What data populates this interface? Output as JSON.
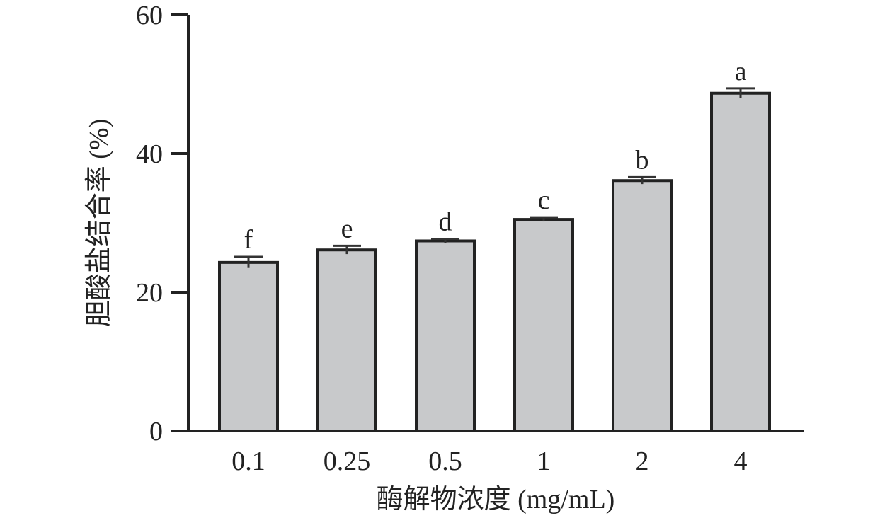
{
  "chart_data": {
    "type": "bar",
    "categories": [
      "0.1",
      "0.25",
      "0.5",
      "1",
      "2",
      "4"
    ],
    "values": [
      24.3,
      26.1,
      27.4,
      30.5,
      36.1,
      48.7
    ],
    "errors": [
      0.8,
      0.6,
      0.3,
      0.3,
      0.5,
      0.7
    ],
    "significance_labels": [
      "f",
      "e",
      "d",
      "c",
      "b",
      "a"
    ],
    "xlabel": "酶解物浓度 (mg/mL)",
    "ylabel": "胆酸盐结合率 (%)",
    "title": "",
    "ylim": [
      0,
      60
    ],
    "yticks": [
      0,
      20,
      40,
      60
    ],
    "grid": false,
    "colors": {
      "bar_fill": "#c8c9cb",
      "bar_stroke": "#222222",
      "axis": "#222222"
    }
  }
}
